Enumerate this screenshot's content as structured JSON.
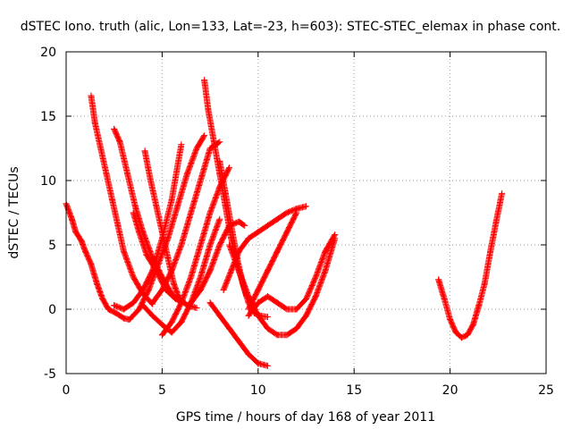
{
  "chart_data": {
    "type": "scatter",
    "title": "dSTEC Iono. truth (alic, Lon=133, Lat=-23, h=603): STEC-STEC_elemax in phase cont.",
    "xlabel": "GPS time / hours of day 168 of year 2011",
    "ylabel": "dSTEC  / TECUs",
    "xlim": [
      0,
      25
    ],
    "ylim": [
      -5,
      20
    ],
    "xticks": [
      0,
      5,
      10,
      15,
      20,
      25
    ],
    "yticks": [
      -5,
      0,
      5,
      10,
      15,
      20
    ],
    "xtick_labels": [
      "0",
      "5",
      "10",
      "15",
      "20",
      "25"
    ],
    "ytick_labels": [
      "-5",
      "0",
      "5",
      "10",
      "15",
      "20"
    ],
    "grid": true,
    "marker": "+",
    "color": "#ff0000",
    "series": [
      {
        "x": [
          0.0,
          0.3,
          0.5,
          0.8,
          1.0,
          1.3,
          1.6,
          1.9,
          2.2,
          2.6,
          3.0,
          3.3
        ],
        "y": [
          8.2,
          7.0,
          6.0,
          5.3,
          4.5,
          3.5,
          2.0,
          0.8,
          0.0,
          -0.3,
          -0.7,
          -0.8
        ]
      },
      {
        "x": [
          1.3,
          1.5,
          1.8,
          2.1,
          2.4,
          2.7,
          3.0,
          3.5,
          4.0,
          4.5
        ],
        "y": [
          16.6,
          14.5,
          12.5,
          10.5,
          8.5,
          6.5,
          4.5,
          2.5,
          1.2,
          0.4
        ]
      },
      {
        "x": [
          2.5,
          2.8,
          3.2,
          3.6,
          4.0,
          4.5,
          5.0,
          5.5,
          6.0
        ],
        "y": [
          14.0,
          13.0,
          10.5,
          8.0,
          6.0,
          4.0,
          2.5,
          1.2,
          0.5
        ]
      },
      {
        "x": [
          3.3,
          3.8,
          4.3,
          4.8,
          5.3,
          5.8,
          6.3,
          6.8,
          7.2
        ],
        "y": [
          -0.8,
          0.0,
          1.5,
          3.5,
          5.5,
          8.0,
          10.5,
          12.5,
          13.5
        ]
      },
      {
        "x": [
          3.5,
          3.8,
          4.2,
          4.7,
          5.2,
          5.7,
          6.2
        ],
        "y": [
          7.5,
          6.0,
          4.2,
          3.0,
          1.5,
          0.8,
          0.5
        ]
      },
      {
        "x": [
          4.1,
          4.4,
          4.7,
          5.0,
          5.3,
          5.6,
          5.9,
          6.3,
          6.8
        ],
        "y": [
          12.3,
          10.0,
          8.0,
          6.0,
          4.0,
          2.0,
          0.8,
          0.3,
          0.1
        ]
      },
      {
        "x": [
          2.5,
          3.0,
          3.5,
          4.0,
          4.5,
          5.0,
          5.5,
          6.0
        ],
        "y": [
          0.3,
          0.0,
          0.5,
          1.5,
          3.0,
          5.5,
          8.5,
          12.8
        ]
      },
      {
        "x": [
          4.0,
          4.5,
          5.0,
          5.5,
          6.0,
          6.5,
          7.0,
          7.5,
          8.0
        ],
        "y": [
          0.3,
          -0.5,
          -1.2,
          -1.8,
          -1.0,
          0.5,
          2.5,
          5.0,
          7.0
        ]
      },
      {
        "x": [
          4.5,
          5.0,
          5.5,
          6.0,
          6.5,
          7.0,
          7.5,
          8.0
        ],
        "y": [
          0.5,
          1.5,
          3.0,
          5.0,
          7.5,
          10.0,
          12.5,
          13.0
        ]
      },
      {
        "x": [
          5.0,
          5.5,
          6.0,
          6.5,
          7.0,
          7.5,
          8.0,
          8.5
        ],
        "y": [
          -2.0,
          -1.0,
          0.5,
          2.5,
          5.0,
          7.5,
          9.5,
          11.0
        ]
      },
      {
        "x": [
          7.2,
          7.4,
          7.7,
          8.0,
          8.3,
          8.6,
          9.0,
          9.4
        ],
        "y": [
          17.8,
          15.5,
          13.0,
          10.5,
          8.0,
          5.5,
          3.0,
          1.0
        ]
      },
      {
        "x": [
          8.0,
          8.3,
          8.6,
          8.9,
          9.2,
          9.5,
          9.8,
          10.1,
          10.5
        ],
        "y": [
          11.5,
          9.0,
          6.5,
          4.0,
          2.0,
          0.5,
          -0.3,
          -0.5,
          -0.6
        ]
      },
      {
        "x": [
          8.2,
          8.6,
          9.0,
          9.5,
          10.0,
          10.5,
          11.0,
          11.5,
          12.0,
          12.5
        ],
        "y": [
          1.5,
          3.0,
          4.5,
          5.5,
          6.0,
          6.5,
          7.0,
          7.5,
          7.8,
          8.0
        ]
      },
      {
        "x": [
          6.5,
          7.0,
          7.5,
          8.0,
          8.5,
          9.0,
          9.3
        ],
        "y": [
          0.5,
          1.5,
          3.0,
          5.0,
          6.5,
          6.8,
          6.5
        ]
      },
      {
        "x": [
          7.5,
          8.0,
          8.5,
          9.0,
          9.5,
          10.0,
          10.5
        ],
        "y": [
          0.5,
          -0.5,
          -1.5,
          -2.5,
          -3.5,
          -4.2,
          -4.4
        ]
      },
      {
        "x": [
          8.5,
          9.0,
          9.5,
          10.0,
          10.5,
          11.0,
          11.5,
          12.0,
          12.5,
          13.0,
          13.5,
          14.0
        ],
        "y": [
          5.0,
          3.0,
          1.0,
          -0.5,
          -1.5,
          -2.0,
          -2.0,
          -1.5,
          -0.5,
          1.0,
          3.0,
          5.5
        ]
      },
      {
        "x": [
          9.5,
          10.0,
          10.5,
          11.0,
          11.5,
          12.0,
          12.5,
          13.0,
          13.5,
          14.0
        ],
        "y": [
          -0.5,
          0.5,
          1.0,
          0.5,
          0.0,
          0.0,
          0.8,
          2.5,
          4.5,
          5.8
        ]
      },
      {
        "x": [
          9.5,
          10.0,
          10.5,
          11.0,
          11.5,
          12.0
        ],
        "y": [
          0.0,
          1.5,
          3.0,
          4.5,
          6.0,
          7.5
        ]
      },
      {
        "x": [
          19.4,
          19.7,
          20.0,
          20.3,
          20.6,
          20.9,
          21.2,
          21.5,
          21.8,
          22.1,
          22.4,
          22.7
        ],
        "y": [
          2.3,
          0.8,
          -0.8,
          -1.8,
          -2.2,
          -2.0,
          -1.2,
          0.3,
          2.0,
          4.5,
          6.8,
          9.0
        ]
      }
    ]
  }
}
